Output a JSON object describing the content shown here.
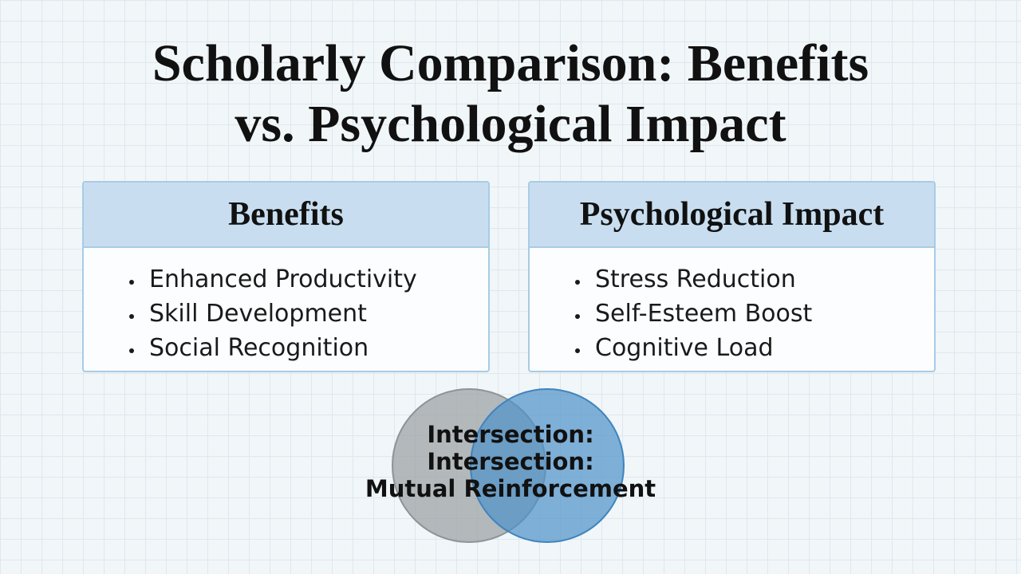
{
  "title": {
    "lines": [
      "Scholarly Comparison: Benefits",
      "vs. Psychological Impact"
    ]
  },
  "panels": [
    {
      "heading": "Benefits",
      "items": [
        "Enhanced Productivity",
        "Skill Development",
        "Social Recognition"
      ]
    },
    {
      "heading": "Psychological Impact",
      "items": [
        "Stress Reduction",
        "Self-Esteem Boost",
        "Cognitive Load"
      ]
    }
  ],
  "venn": {
    "label_lines": [
      "Intersection:",
      "Intersection:",
      "Mutual Reinforcement"
    ]
  }
}
